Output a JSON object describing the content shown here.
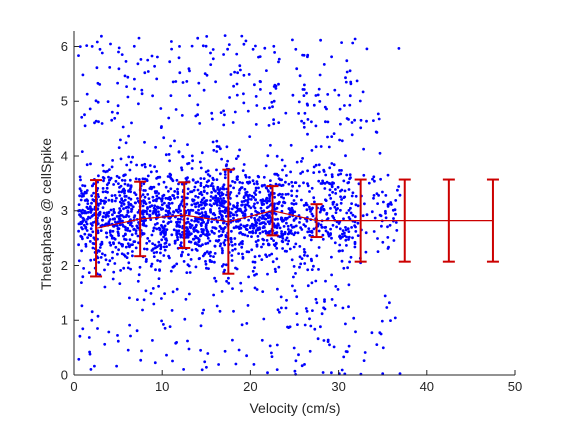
{
  "chart_data": {
    "type": "scatter",
    "title": "",
    "xlabel": "Velocity (cm/s)",
    "ylabel": "Thetaphase @ cellSpike",
    "xlim": [
      0,
      50
    ],
    "ylim": [
      0,
      6.283
    ],
    "xticks": [
      0,
      10,
      20,
      30,
      40,
      50
    ],
    "yticks": [
      0,
      1,
      2,
      3,
      4,
      5,
      6
    ],
    "grid": false,
    "legend": "none",
    "colors": {
      "points": "#0000ff",
      "errorbar": "#cc0000",
      "axes": "#262626"
    },
    "scatter_description": "dense cloud of spike phases vs. running velocity, concentrated between phase 2 and 4 at velocities below 25 cm/s, thinning out at higher velocities",
    "mean_with_sd": {
      "x": [
        2.5,
        7.5,
        12.5,
        17.5,
        22.5,
        27.5,
        32.5,
        37.5,
        42.5,
        47.5
      ],
      "y": [
        2.68,
        2.85,
        2.92,
        2.8,
        3.0,
        2.82,
        2.82,
        2.82,
        2.82,
        2.82
      ],
      "sd": [
        0.88,
        0.68,
        0.6,
        0.95,
        0.45,
        0.3,
        0.75,
        0.75,
        0.75,
        0.75
      ]
    }
  }
}
